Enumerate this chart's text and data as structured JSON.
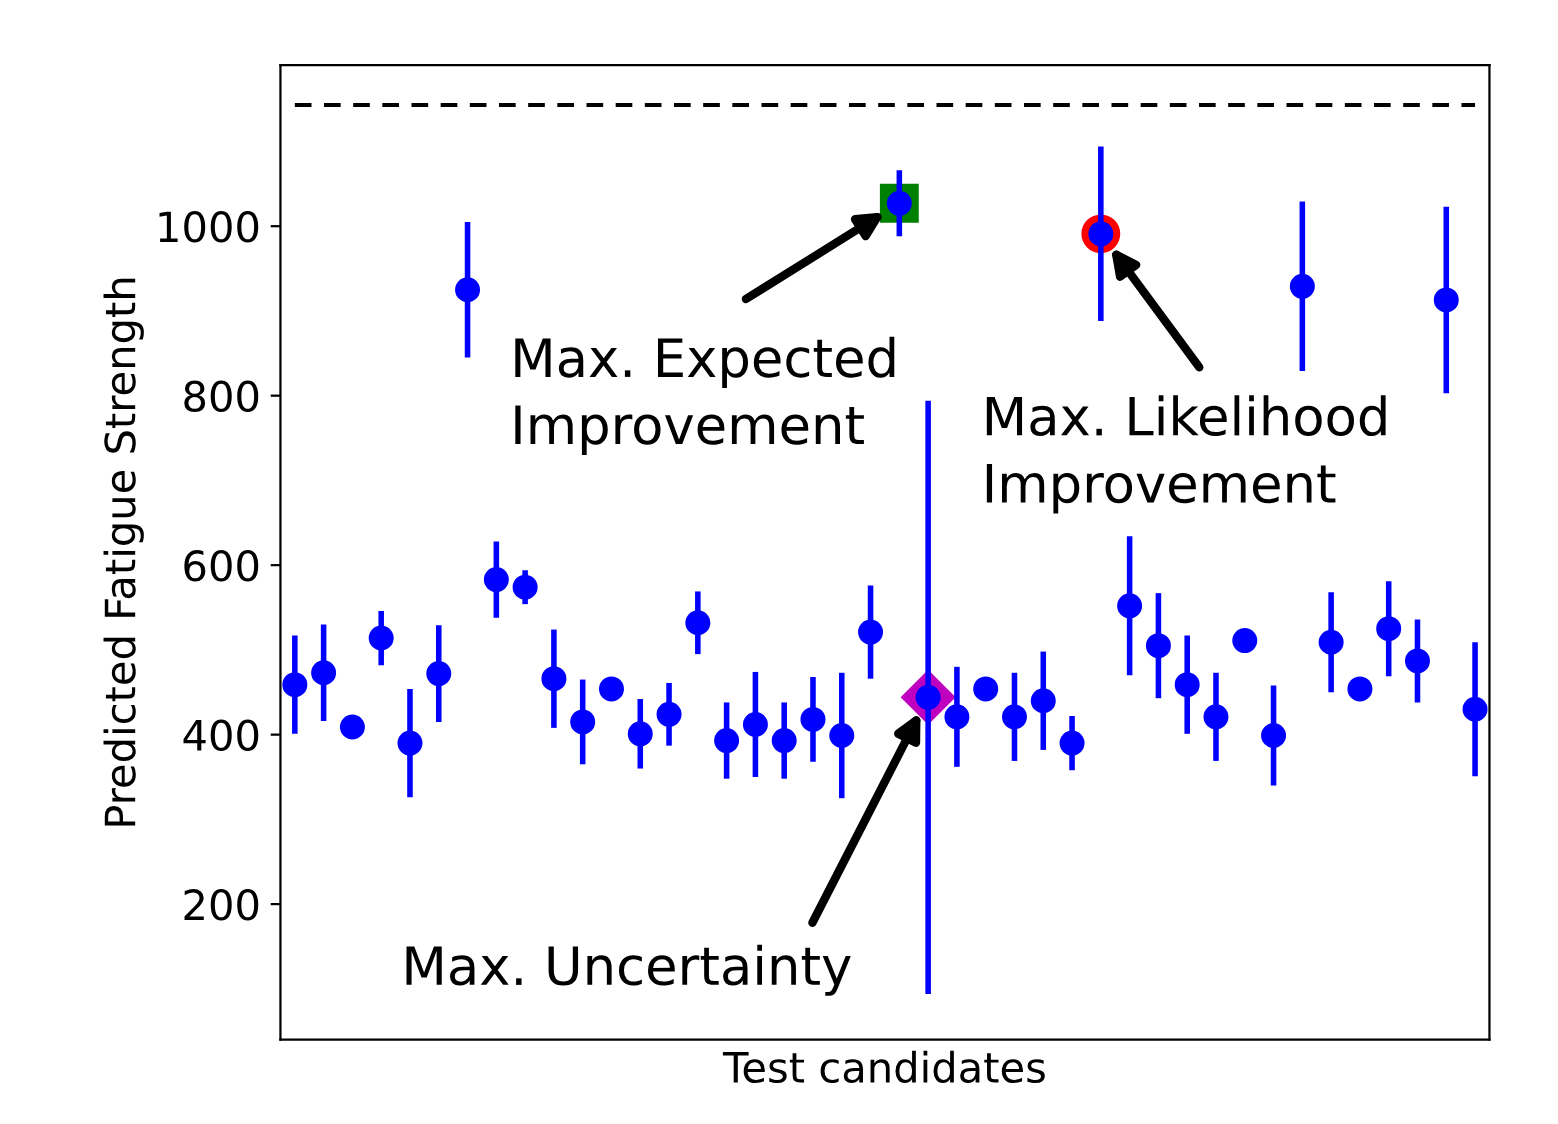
{
  "chart_data": {
    "type": "scatter",
    "xlabel": "Test candidates",
    "ylabel": "Predicted Fatigue Strength",
    "categories": [
      null,
      null,
      null,
      null,
      null,
      null,
      null,
      null,
      null,
      null,
      null,
      null,
      null,
      null,
      null,
      null,
      null,
      null,
      null,
      null,
      null,
      null,
      null,
      null,
      null,
      null,
      null,
      null,
      null,
      null,
      null,
      null,
      null,
      null,
      null,
      null,
      null,
      null,
      null,
      null,
      null,
      null
    ],
    "ylim": [
      40,
      1190
    ],
    "yticks": [
      200,
      400,
      600,
      800,
      1000
    ],
    "tick_labels": "y",
    "grid": false,
    "series": [
      {
        "marker": "square",
        "color": "#008000",
        "values": [
          null,
          null,
          null,
          null,
          null,
          null,
          null,
          null,
          null,
          null,
          null,
          null,
          null,
          null,
          null,
          null,
          null,
          null,
          null,
          null,
          null,
          1027,
          null,
          null,
          null,
          null,
          null,
          null,
          null,
          null,
          null,
          null,
          null,
          null,
          null,
          null,
          null,
          null,
          null,
          null,
          null,
          null
        ]
      },
      {
        "marker": "circle",
        "color": "#ff0000",
        "values": [
          null,
          null,
          null,
          null,
          null,
          null,
          null,
          null,
          null,
          null,
          null,
          null,
          null,
          null,
          null,
          null,
          null,
          null,
          null,
          null,
          null,
          null,
          null,
          null,
          null,
          null,
          null,
          null,
          991,
          null,
          null,
          null,
          null,
          null,
          null,
          null,
          null,
          null,
          null,
          null,
          null,
          null
        ]
      },
      {
        "marker": "diamond",
        "color": "#c000c0",
        "values": [
          null,
          null,
          null,
          null,
          null,
          null,
          null,
          null,
          null,
          null,
          null,
          null,
          null,
          null,
          null,
          null,
          null,
          null,
          null,
          null,
          null,
          null,
          444,
          null,
          null,
          null,
          null,
          null,
          null,
          null,
          null,
          null,
          null,
          null,
          null,
          null,
          null,
          null,
          null,
          null,
          null,
          null
        ]
      },
      {
        "marker": "circle",
        "color": "#0000ff",
        "values": [
          459,
          473,
          409,
          514,
          390,
          472,
          925,
          583,
          574,
          466,
          415,
          454,
          401,
          424,
          532,
          393,
          412,
          393,
          418,
          399,
          521,
          1027,
          444,
          421,
          454,
          421,
          440,
          390,
          991,
          552,
          505,
          459,
          421,
          511,
          399,
          929,
          509,
          454,
          525,
          487,
          913,
          430
        ],
        "errors": [
          58,
          57,
          null,
          32,
          64,
          57,
          80,
          45,
          20,
          58,
          50,
          10,
          41,
          37,
          37,
          45,
          62,
          45,
          50,
          74,
          55,
          39,
          350,
          59,
          12,
          52,
          58,
          32,
          103,
          82,
          62,
          58,
          52,
          8,
          59,
          100,
          59,
          14,
          56,
          49,
          110,
          79
        ]
      }
    ],
    "ref_lines": [
      {
        "axis": "y",
        "value": 1143,
        "color": "#000000",
        "line_style": "dashed"
      }
    ],
    "annotations": [
      "Max. Expected\nImprovement",
      "Max. Likelihood\nImprovement",
      "Max. Uncertainty"
    ]
  }
}
